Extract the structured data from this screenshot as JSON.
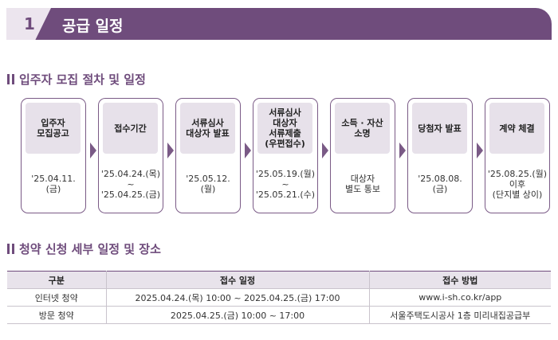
{
  "banner": {
    "number": "1",
    "title": "공급 일정"
  },
  "section1": {
    "title": "입주자 모집 절차 및 일정"
  },
  "steps": [
    {
      "title": "입주자\n모집공고",
      "detail": "'25.04.11.\n(금)"
    },
    {
      "title": "접수기간",
      "detail": "'25.04.24.(목)\n~\n'25.04.25.(금)"
    },
    {
      "title": "서류심사\n대상자 발표",
      "detail": "'25.05.12.\n(월)"
    },
    {
      "title": "서류심사\n대상자\n서류제출\n(우편접수)",
      "detail": "'25.05.19.(월)\n~\n'25.05.21.(수)"
    },
    {
      "title": "소득 · 자산\n소명",
      "detail": "대상자\n별도 통보"
    },
    {
      "title": "당첨자 발표",
      "detail": "'25.08.08.\n(금)"
    },
    {
      "title": "계약 체결",
      "detail": "'25.08.25.(월)\n이후\n(단지별 상이)"
    }
  ],
  "section2": {
    "title": "청약 신청 세부 일정 및 장소"
  },
  "table": {
    "headers": [
      "구분",
      "접수 일정",
      "접수 방법"
    ],
    "rows": [
      [
        "인터넷 청약",
        "2025.04.24.(목) 10:00 ~ 2025.04.25.(금) 17:00",
        "www.i-sh.co.kr/app"
      ],
      [
        "방문 청약",
        "2025.04.25.(금) 10:00 ~ 17:00",
        "서울주택도시공사 1층 미리내집공급부"
      ]
    ]
  },
  "colors": {
    "accent": "#6f4c7c",
    "step_head_bg": "#e7e1ea",
    "table_head_bg": "#e8e3eb"
  }
}
